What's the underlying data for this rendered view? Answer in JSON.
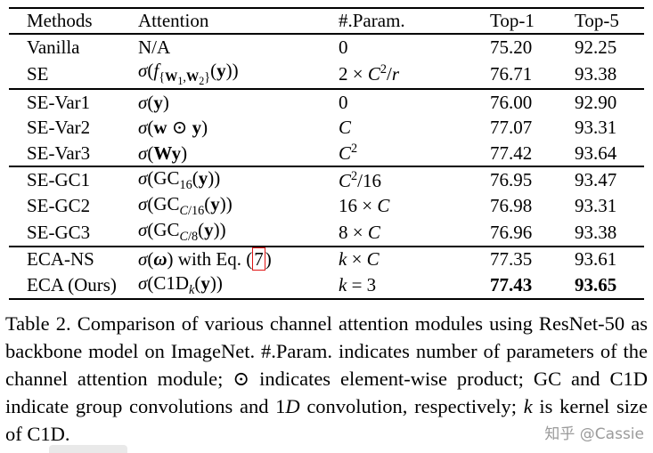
{
  "table": {
    "headers": {
      "methods": "Methods",
      "attention": "Attention",
      "params": "#.Param.",
      "top1": "Top-1",
      "top5": "Top-5"
    },
    "rows": [
      {
        "method": "Vanilla",
        "attention": "N/A",
        "params": "0",
        "top1": "75.20",
        "top5": "92.25"
      },
      {
        "method": "SE",
        "attention": "<i>σ</i>(<i>f</i><sub>{<b>W</b><sub>1</sub>,<b>W</b><sub>2</sub>}</sub>(<b>y</b>))",
        "params": "2 × <i>C</i><sup>2</sup>/<i>r</i>",
        "top1": "76.71",
        "top5": "93.38"
      },
      {
        "method": "SE-Var1",
        "attention": "<i>σ</i>(<b>y</b>)",
        "params": "0",
        "top1": "76.00",
        "top5": "92.90"
      },
      {
        "method": "SE-Var2",
        "attention": "<i>σ</i>(<b>w</b> ⊙ <b>y</b>)",
        "params": "<i>C</i>",
        "top1": "77.07",
        "top5": "93.31"
      },
      {
        "method": "SE-Var3",
        "attention": "<i>σ</i>(<b>Wy</b>)",
        "params": "<i>C</i><sup>2</sup>",
        "top1": "77.42",
        "top5": "93.64"
      },
      {
        "method": "SE-GC1",
        "attention": "<i>σ</i>(GC<sub>16</sub>(<b>y</b>))",
        "params": "<i>C</i><sup>2</sup>/16",
        "top1": "76.95",
        "top5": "93.47"
      },
      {
        "method": "SE-GC2",
        "attention": "<i>σ</i>(GC<sub><i>C</i>/16</sub>(<b>y</b>))",
        "params": "16 × <i>C</i>",
        "top1": "76.98",
        "top5": "93.31"
      },
      {
        "method": "SE-GC3",
        "attention": "<i>σ</i>(GC<sub><i>C</i>/8</sub>(<b>y</b>))",
        "params": "8 × <i>C</i>",
        "top1": "76.96",
        "top5": "93.38"
      },
      {
        "method": "ECA-NS",
        "attention": "<i>σ</i>(<b><i>ω</i></b>) with Eq. (<span class=\"eq-ref\" data-name=\"equation-ref-link\" data-interactable=\"true\">7</span>)",
        "params": "<i>k</i> × <i>C</i>",
        "top1": "77.35",
        "top5": "93.61"
      },
      {
        "method": "ECA (Ours)",
        "attention": "<i>σ</i>(C1D<sub><i>k</i></sub>(<b>y</b>))",
        "params": "<i>k</i> = 3",
        "top1": "77.43",
        "top5": "93.65"
      }
    ]
  },
  "caption_html": "Table 2. Comparison of various channel attention modules using ResNet-50 as backbone model on ImageNet. #.Param. indicates number of parameters of the channel attention module; ⊙ indicates element-wise product; GC and C1D indicate group convolutions and 1<i>D</i> convolution, respectively; <i>k</i> is kernel size of C1D.",
  "watermark": "知乎 @Cassie",
  "colors": {
    "text": "#000000",
    "eq_ref_box": "#e01414",
    "watermark": "#9b9b9b"
  }
}
